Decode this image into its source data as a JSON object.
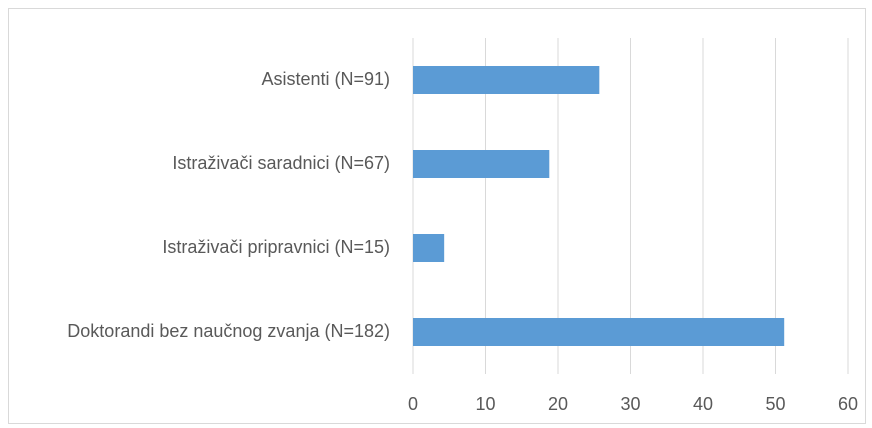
{
  "chart_data": {
    "type": "bar",
    "orientation": "horizontal",
    "categories": [
      "Asistenti (N=91)",
      "Istraživači saradnici (N=67)",
      "Istraživači pripravnici (N=15)",
      "Doktorandi bez naučnog zvanja (N=182)"
    ],
    "values": [
      25.7,
      18.8,
      4.3,
      51.2
    ],
    "color": "#5b9bd5",
    "xlim": [
      0,
      60
    ],
    "xticks": [
      0,
      10,
      20,
      30,
      40,
      50,
      60
    ],
    "grid": true
  }
}
